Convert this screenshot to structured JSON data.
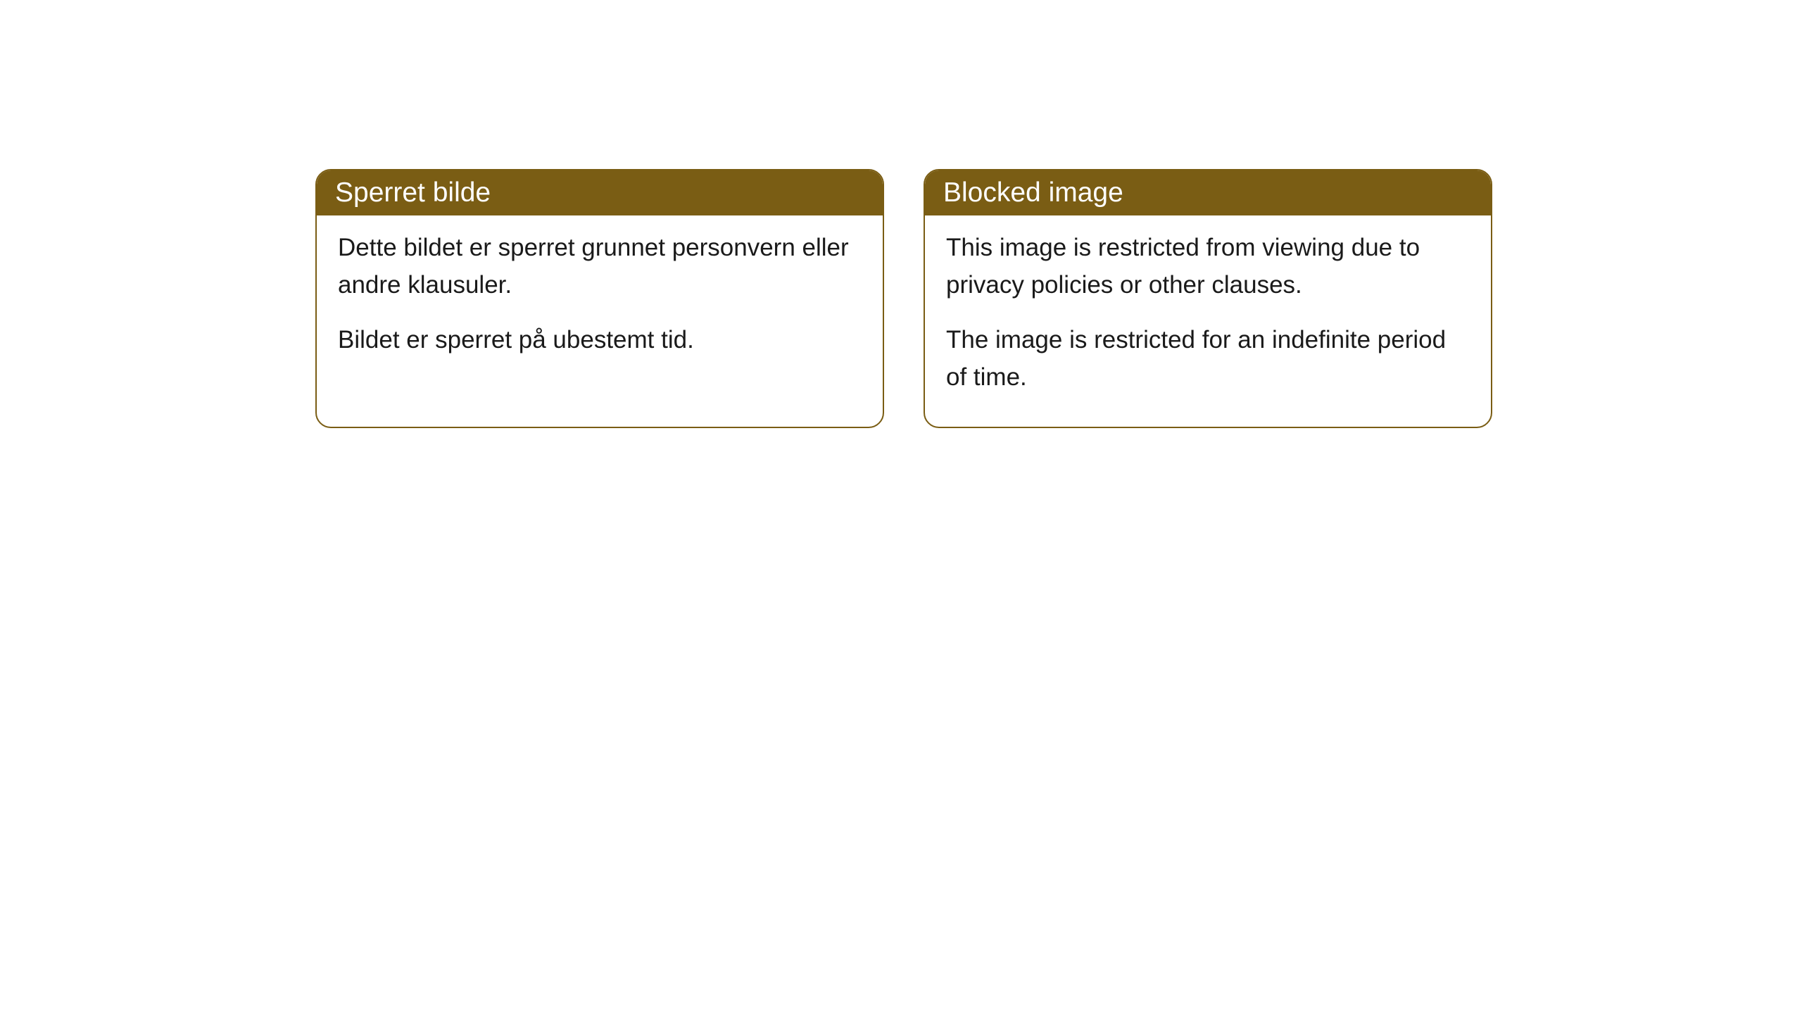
{
  "cards": [
    {
      "title": "Sperret bilde",
      "paragraph1": "Dette bildet er sperret grunnet personvern eller andre klausuler.",
      "paragraph2": "Bildet er sperret på ubestemt tid."
    },
    {
      "title": "Blocked image",
      "paragraph1": "This image is restricted from viewing due to privacy policies or other clauses.",
      "paragraph2": "The image is restricted for an indefinite period of time."
    }
  ],
  "style": {
    "header_bg_color": "#7a5d14",
    "header_text_color": "#ffffff",
    "border_color": "#7a5d14",
    "body_bg_color": "#ffffff",
    "body_text_color": "#1a1a1a",
    "border_radius": 22,
    "title_fontsize": 39,
    "body_fontsize": 35
  }
}
